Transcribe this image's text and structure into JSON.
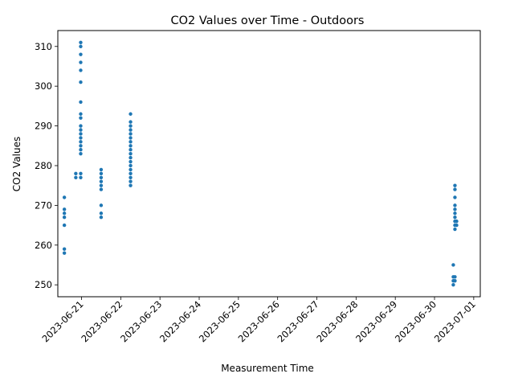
{
  "chart_data": {
    "type": "scatter",
    "title": "CO2 Values over Time - Outdoors",
    "xlabel": "Measurement Time",
    "ylabel": "CO2 Values",
    "xlim": [
      "2023-06-20T09:30",
      "2023-07-01T04:00"
    ],
    "ylim": [
      247,
      314
    ],
    "x_ticks": [
      "2023-06-21",
      "2023-06-22",
      "2023-06-23",
      "2023-06-24",
      "2023-06-25",
      "2023-06-26",
      "2023-06-27",
      "2023-06-28",
      "2023-06-29",
      "2023-06-30",
      "2023-07-01"
    ],
    "y_ticks": [
      250,
      260,
      270,
      280,
      290,
      300,
      310
    ],
    "grid": false,
    "marker_color": "#1f77b4",
    "series": [
      {
        "points": [
          [
            "2023-06-20T13:30",
            258
          ],
          [
            "2023-06-20T13:30",
            259
          ],
          [
            "2023-06-20T13:30",
            265
          ],
          [
            "2023-06-20T13:30",
            267
          ],
          [
            "2023-06-20T13:30",
            268
          ],
          [
            "2023-06-20T13:30",
            269
          ],
          [
            "2023-06-20T13:30",
            272
          ],
          [
            "2023-06-20T20:30",
            277
          ],
          [
            "2023-06-20T20:30",
            278
          ],
          [
            "2023-06-20T23:30",
            277
          ],
          [
            "2023-06-20T23:30",
            278
          ],
          [
            "2023-06-20T23:30",
            283
          ],
          [
            "2023-06-20T23:30",
            284
          ],
          [
            "2023-06-20T23:30",
            285
          ],
          [
            "2023-06-20T23:30",
            286
          ],
          [
            "2023-06-20T23:30",
            287
          ],
          [
            "2023-06-20T23:30",
            288
          ],
          [
            "2023-06-20T23:30",
            289
          ],
          [
            "2023-06-20T23:30",
            290
          ],
          [
            "2023-06-20T23:30",
            292
          ],
          [
            "2023-06-20T23:30",
            293
          ],
          [
            "2023-06-20T23:30",
            296
          ],
          [
            "2023-06-20T23:30",
            301
          ],
          [
            "2023-06-20T23:30",
            304
          ],
          [
            "2023-06-20T23:30",
            306
          ],
          [
            "2023-06-20T23:30",
            308
          ],
          [
            "2023-06-20T23:30",
            310
          ],
          [
            "2023-06-20T23:30",
            311
          ],
          [
            "2023-06-21T12:00",
            267
          ],
          [
            "2023-06-21T12:00",
            268
          ],
          [
            "2023-06-21T12:00",
            270
          ],
          [
            "2023-06-21T12:00",
            274
          ],
          [
            "2023-06-21T12:00",
            275
          ],
          [
            "2023-06-21T12:00",
            276
          ],
          [
            "2023-06-21T12:00",
            277
          ],
          [
            "2023-06-21T12:00",
            278
          ],
          [
            "2023-06-21T12:00",
            279
          ],
          [
            "2023-06-22T06:00",
            275
          ],
          [
            "2023-06-22T06:00",
            276
          ],
          [
            "2023-06-22T06:00",
            277
          ],
          [
            "2023-06-22T06:00",
            278
          ],
          [
            "2023-06-22T06:00",
            279
          ],
          [
            "2023-06-22T06:00",
            280
          ],
          [
            "2023-06-22T06:00",
            281
          ],
          [
            "2023-06-22T06:00",
            282
          ],
          [
            "2023-06-22T06:00",
            283
          ],
          [
            "2023-06-22T06:00",
            284
          ],
          [
            "2023-06-22T06:00",
            285
          ],
          [
            "2023-06-22T06:00",
            286
          ],
          [
            "2023-06-22T06:00",
            287
          ],
          [
            "2023-06-22T06:00",
            288
          ],
          [
            "2023-06-22T06:00",
            289
          ],
          [
            "2023-06-22T06:00",
            290
          ],
          [
            "2023-06-22T06:00",
            291
          ],
          [
            "2023-06-22T06:00",
            293
          ],
          [
            "2023-06-30T11:30",
            250
          ],
          [
            "2023-06-30T11:30",
            251
          ],
          [
            "2023-06-30T11:30",
            252
          ],
          [
            "2023-06-30T11:30",
            255
          ],
          [
            "2023-06-30T12:30",
            251
          ],
          [
            "2023-06-30T12:30",
            252
          ],
          [
            "2023-06-30T12:30",
            264
          ],
          [
            "2023-06-30T12:30",
            265
          ],
          [
            "2023-06-30T12:30",
            266
          ],
          [
            "2023-06-30T12:30",
            267
          ],
          [
            "2023-06-30T12:30",
            268
          ],
          [
            "2023-06-30T12:30",
            269
          ],
          [
            "2023-06-30T12:30",
            270
          ],
          [
            "2023-06-30T12:30",
            272
          ],
          [
            "2023-06-30T12:30",
            274
          ],
          [
            "2023-06-30T12:30",
            275
          ],
          [
            "2023-06-30T13:30",
            265
          ],
          [
            "2023-06-30T13:30",
            266
          ]
        ]
      }
    ]
  }
}
